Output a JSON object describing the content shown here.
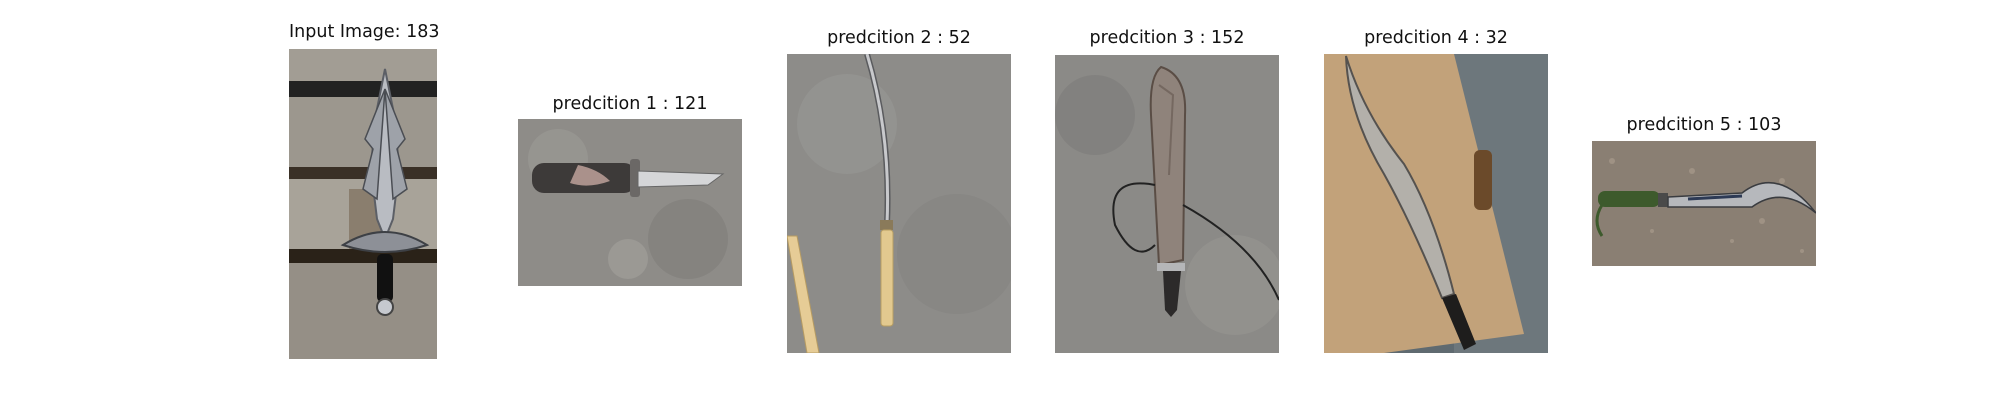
{
  "panels": [
    {
      "title": "Input Image: 183",
      "subject": "ornate-fantasy-dagger-on-wooden-pallet"
    },
    {
      "title": "predcition 1 : 121",
      "subject": "folding-knife-on-concrete"
    },
    {
      "title": "predcition 2 : 52",
      "subject": "curved-sword-on-concrete"
    },
    {
      "title": "predcition 3 : 152",
      "subject": "machete-with-cord-on-concrete"
    },
    {
      "title": "predcition 4 : 32",
      "subject": "machete-on-brown-paper"
    },
    {
      "title": "predcition 5 : 103",
      "subject": "sickle-knife-on-gravel"
    }
  ]
}
